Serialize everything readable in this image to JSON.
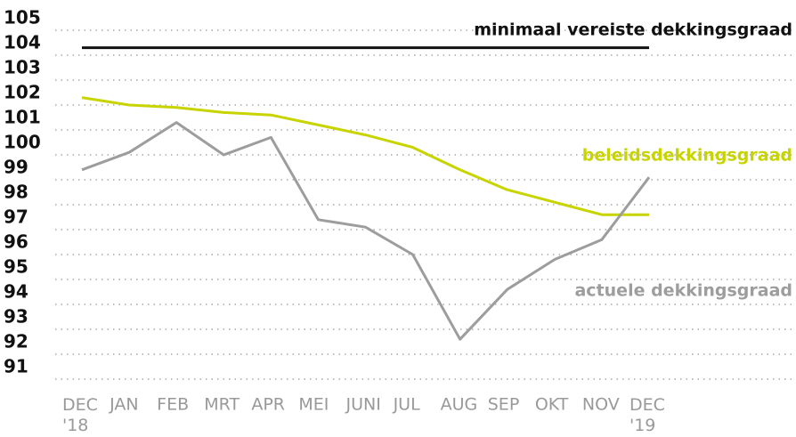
{
  "chart_data": {
    "type": "line",
    "categories": [
      "DEC\n'18",
      "JAN",
      "FEB",
      "MRT",
      "APR",
      "MEI",
      "JUNI",
      "JUL",
      "AUG",
      "SEP",
      "OKT",
      "NOV",
      "DEC\n'19"
    ],
    "series": [
      {
        "name": "minimaal vereiste dekkingsgraad",
        "color": "#111111",
        "values": [
          104.3,
          104.3,
          104.3,
          104.3,
          104.3,
          104.3,
          104.3,
          104.3,
          104.3,
          104.3,
          104.3,
          104.3,
          104.3
        ]
      },
      {
        "name": "beleidsdekkingsgraad",
        "color": "#c8d400",
        "values": [
          102.3,
          102.0,
          101.9,
          101.7,
          101.6,
          101.2,
          100.8,
          100.3,
          99.4,
          98.6,
          98.1,
          97.6,
          97.6
        ]
      },
      {
        "name": "actuele dekkingsgraad",
        "color": "#9d9d9d",
        "values": [
          99.4,
          100.1,
          101.3,
          100.0,
          100.7,
          97.4,
          97.1,
          96.0,
          92.6,
          94.6,
          95.8,
          96.6,
          99.1
        ]
      }
    ],
    "ylim": [
      91,
      105
    ],
    "yticks": [
      91,
      92,
      93,
      94,
      95,
      96,
      97,
      98,
      99,
      100,
      101,
      102,
      103,
      104,
      105
    ],
    "grid": true
  }
}
